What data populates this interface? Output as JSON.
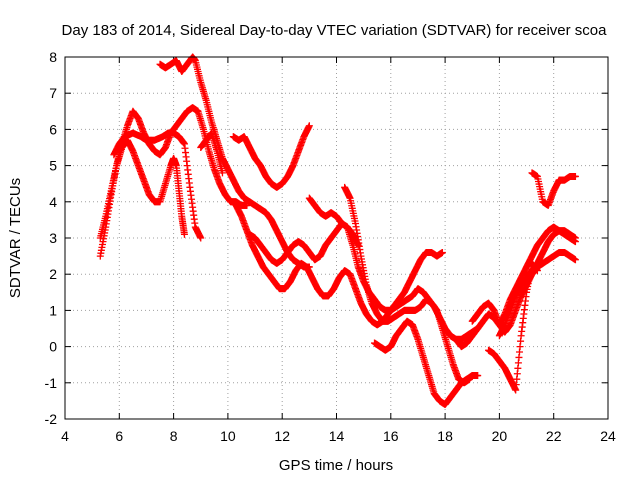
{
  "chart_data": {
    "type": "scatter",
    "title": "Day 183 of 2014, Sidereal Day-to-day VTEC variation (SDTVAR) for receiver scoa",
    "xlabel": "GPS time / hours",
    "ylabel": "SDTVAR / TECUs",
    "xlim": [
      4,
      24
    ],
    "ylim": [
      -2,
      8
    ],
    "xticks": [
      4,
      6,
      8,
      10,
      12,
      14,
      16,
      18,
      20,
      22,
      24
    ],
    "yticks": [
      -2,
      -1,
      0,
      1,
      2,
      3,
      4,
      5,
      6,
      7,
      8
    ],
    "grid": true,
    "marker": "+",
    "color": "#ff0000",
    "series": [
      {
        "x": [
          5.3,
          5.5,
          5.7,
          5.9,
          6.1,
          6.3,
          6.5,
          6.7,
          6.9,
          7.1,
          7.3,
          7.5,
          7.7,
          7.9,
          8.1,
          8.3,
          8.5,
          8.7,
          8.9,
          9.1,
          9.3,
          9.5,
          9.7,
          9.9,
          10.1,
          10.3,
          10.5,
          10.7
        ],
        "y": [
          3.0,
          3.6,
          4.3,
          5.0,
          5.6,
          6.1,
          6.5,
          6.3,
          5.9,
          5.6,
          5.4,
          5.3,
          5.5,
          5.9,
          6.1,
          6.3,
          6.5,
          6.6,
          6.5,
          6.0,
          5.4,
          4.9,
          4.5,
          4.2,
          4.0,
          4.0,
          3.9,
          3.9
        ]
      },
      {
        "x": [
          5.3,
          5.5,
          5.7,
          5.9,
          6.1,
          6.3,
          6.5,
          6.7,
          6.9,
          7.1,
          7.3,
          7.5,
          7.7,
          7.9,
          8.0,
          8.1,
          8.2,
          8.3,
          8.4
        ],
        "y": [
          2.5,
          3.3,
          4.2,
          5.0,
          5.5,
          5.7,
          5.4,
          5.0,
          4.6,
          4.2,
          4.0,
          4.0,
          4.5,
          5.0,
          5.2,
          5.0,
          4.3,
          3.6,
          3.1
        ]
      },
      {
        "x": [
          5.8,
          6.0,
          6.2,
          6.5,
          6.8,
          7.0,
          7.3,
          7.6,
          7.8,
          8.0,
          8.2,
          8.4,
          8.6,
          8.8,
          9.0
        ],
        "y": [
          5.3,
          5.6,
          5.8,
          5.9,
          5.8,
          5.7,
          5.7,
          5.8,
          5.9,
          5.9,
          5.8,
          5.6,
          4.4,
          3.3,
          3.0
        ]
      },
      {
        "x": [
          7.5,
          7.7,
          7.9,
          8.1,
          8.3,
          8.5,
          8.7,
          8.8,
          9.0,
          9.2,
          9.4,
          9.6,
          9.8,
          10.0,
          10.2,
          10.4,
          10.6,
          10.8,
          11.0,
          11.2,
          11.4,
          11.6,
          11.8,
          12.0,
          12.2,
          12.4,
          12.6,
          12.8,
          13.0
        ],
        "y": [
          7.8,
          7.7,
          7.8,
          7.9,
          7.6,
          7.8,
          8.0,
          7.9,
          7.3,
          6.8,
          6.2,
          5.7,
          5.2,
          4.9,
          4.6,
          4.3,
          4.1,
          4.0,
          3.9,
          3.8,
          3.7,
          3.5,
          3.2,
          2.9,
          2.6,
          2.4,
          2.3,
          2.2,
          2.2
        ]
      },
      {
        "x": [
          9.0,
          9.2,
          9.4,
          9.6,
          9.8
        ],
        "y": [
          5.5,
          5.7,
          5.9,
          5.4,
          4.8
        ]
      },
      {
        "x": [
          10.2,
          10.4,
          10.6,
          10.8,
          11.0,
          11.2,
          11.4,
          11.6,
          11.8,
          12.0,
          12.2,
          12.4,
          12.6,
          12.8,
          13.0
        ],
        "y": [
          5.8,
          5.7,
          5.8,
          5.5,
          5.2,
          5.0,
          4.7,
          4.5,
          4.4,
          4.5,
          4.7,
          5.0,
          5.4,
          5.8,
          6.1
        ]
      },
      {
        "x": [
          10.3,
          10.5,
          10.7,
          10.9,
          11.1,
          11.3,
          11.5,
          11.7,
          11.9,
          12.1,
          12.3,
          12.5,
          12.7,
          12.9,
          13.1,
          13.3,
          13.5,
          13.7,
          13.9,
          14.1,
          14.3,
          14.5,
          14.7,
          14.9,
          15.1,
          15.3,
          15.5,
          15.7,
          15.9,
          16.1,
          16.3,
          16.5,
          16.7,
          16.9,
          17.1,
          17.3,
          17.5,
          17.7,
          17.9
        ],
        "y": [
          3.9,
          3.6,
          3.2,
          2.8,
          2.5,
          2.2,
          2.0,
          1.8,
          1.6,
          1.6,
          1.8,
          2.1,
          2.3,
          2.2,
          1.9,
          1.6,
          1.4,
          1.4,
          1.6,
          1.9,
          2.1,
          2.0,
          1.6,
          1.2,
          0.9,
          0.7,
          0.6,
          0.7,
          0.9,
          1.1,
          1.3,
          1.5,
          1.8,
          2.1,
          2.4,
          2.6,
          2.6,
          2.5,
          2.6
        ]
      },
      {
        "x": [
          10.8,
          11.0,
          11.2,
          11.4,
          11.6,
          11.8,
          12.0,
          12.2,
          12.4,
          12.6,
          12.8,
          13.0,
          13.2,
          13.4,
          13.6,
          13.8,
          14.0,
          14.2,
          14.4,
          14.6,
          14.8,
          15.0,
          15.2,
          15.4,
          15.6,
          15.8,
          16.0,
          16.2,
          16.4,
          16.6,
          16.8,
          17.0,
          17.2,
          17.4,
          17.6,
          17.8,
          18.0,
          18.2,
          18.4,
          18.6,
          18.8,
          19.0,
          19.2
        ],
        "y": [
          3.1,
          3.0,
          2.8,
          2.6,
          2.4,
          2.3,
          2.4,
          2.6,
          2.8,
          2.9,
          2.8,
          2.6,
          2.4,
          2.5,
          2.8,
          3.0,
          3.2,
          3.4,
          3.3,
          2.8,
          2.2,
          1.8,
          1.5,
          1.3,
          1.1,
          1.0,
          1.0,
          1.1,
          1.2,
          1.3,
          1.4,
          1.6,
          1.5,
          1.3,
          1.1,
          0.8,
          0.5,
          0.3,
          0.2,
          0.2,
          0.3,
          0.4,
          0.5
        ]
      },
      {
        "x": [
          13.0,
          13.2,
          13.4,
          13.6,
          13.8,
          14.0,
          14.2,
          14.4,
          14.6,
          14.8
        ],
        "y": [
          4.1,
          3.9,
          3.7,
          3.6,
          3.7,
          3.6,
          3.4,
          3.3,
          3.1,
          2.8
        ]
      },
      {
        "x": [
          14.3,
          14.5,
          14.7,
          14.9,
          15.1,
          15.3,
          15.5,
          15.7,
          15.9,
          16.1,
          16.3,
          16.5,
          16.7,
          16.9,
          17.1,
          17.3,
          17.5,
          17.7,
          17.9,
          18.1,
          18.3,
          18.5,
          18.7,
          18.9
        ],
        "y": [
          4.4,
          4.1,
          3.4,
          2.5,
          1.7,
          1.2,
          0.9,
          0.7,
          0.7,
          0.8,
          0.9,
          1.0,
          1.0,
          1.0,
          1.1,
          1.3,
          1.2,
          1.0,
          0.5,
          0.0,
          -0.5,
          -0.9,
          -1.0,
          -0.9
        ]
      },
      {
        "x": [
          15.4,
          15.6,
          15.8,
          16.0,
          16.2,
          16.4,
          16.6,
          16.8,
          17.0,
          17.2,
          17.4,
          17.6,
          17.8,
          18.0,
          18.2,
          18.4,
          18.6,
          18.8,
          19.0,
          19.2
        ],
        "y": [
          0.1,
          0.0,
          -0.1,
          0.0,
          0.3,
          0.5,
          0.7,
          0.6,
          0.2,
          -0.3,
          -0.8,
          -1.3,
          -1.5,
          -1.6,
          -1.4,
          -1.2,
          -1.0,
          -0.9,
          -0.8,
          -0.8
        ]
      },
      {
        "x": [
          18.4,
          18.6,
          18.8,
          19.0,
          19.2,
          19.4,
          19.6,
          19.8,
          20.0,
          20.2,
          20.4,
          20.6,
          20.8,
          21.0,
          21.2,
          21.4,
          21.6,
          21.8,
          22.0,
          22.2,
          22.4,
          22.6,
          22.8
        ],
        "y": [
          0.2,
          0.0,
          0.1,
          0.3,
          0.5,
          0.7,
          0.9,
          0.8,
          0.6,
          0.9,
          1.3,
          1.6,
          1.9,
          2.2,
          2.5,
          2.8,
          3.0,
          3.2,
          3.3,
          3.2,
          3.1,
          3.0,
          2.9
        ]
      },
      {
        "x": [
          19.0,
          19.2,
          19.4,
          19.6,
          19.8,
          20.0,
          20.2,
          20.4,
          20.6,
          20.8,
          21.0,
          21.2,
          21.4,
          21.6,
          21.8,
          22.0,
          22.2,
          22.4,
          22.6,
          22.8
        ],
        "y": [
          0.7,
          0.9,
          1.1,
          1.2,
          1.0,
          0.6,
          0.4,
          0.6,
          1.0,
          1.4,
          1.7,
          2.0,
          2.2,
          2.3,
          2.4,
          2.5,
          2.6,
          2.6,
          2.5,
          2.4
        ]
      },
      {
        "x": [
          19.6,
          19.8,
          20.0,
          20.2,
          20.4,
          20.6,
          20.8,
          21.0,
          21.2,
          21.4
        ],
        "y": [
          -0.1,
          -0.2,
          -0.4,
          -0.6,
          -0.9,
          -1.2,
          0.3,
          1.5,
          2.3,
          2.1
        ]
      },
      {
        "x": [
          20.0,
          20.2,
          20.4,
          20.6,
          20.8,
          21.0,
          21.2,
          21.4,
          21.6,
          21.8,
          22.0,
          22.2,
          22.4,
          22.6,
          22.8
        ],
        "y": [
          0.3,
          0.6,
          1.0,
          1.4,
          1.7,
          1.9,
          2.1,
          2.3,
          2.6,
          2.9,
          3.1,
          3.2,
          3.2,
          3.1,
          3.0
        ]
      },
      {
        "x": [
          21.2,
          21.4,
          21.6,
          21.8,
          22.0,
          22.2,
          22.4,
          22.6,
          22.8
        ],
        "y": [
          4.8,
          4.7,
          4.0,
          3.9,
          4.3,
          4.6,
          4.6,
          4.7,
          4.7
        ]
      }
    ]
  }
}
